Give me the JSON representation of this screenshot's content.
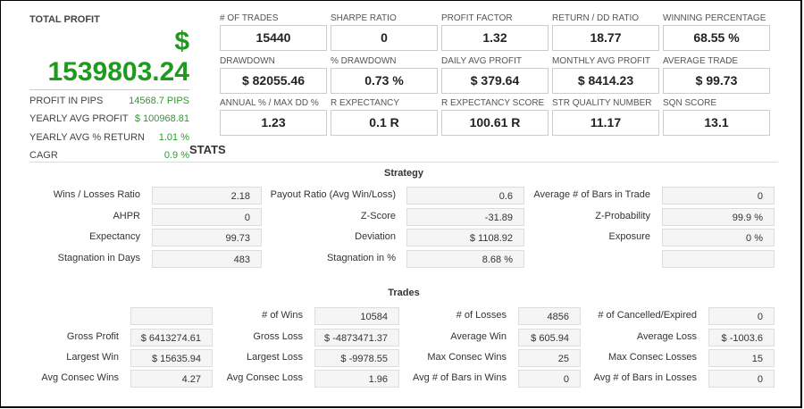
{
  "summary": {
    "title": "TOTAL PROFIT",
    "currency": "$",
    "total_profit": "1539803.24",
    "rows": [
      {
        "label": "PROFIT IN PIPS",
        "value": "14568.7 PIPS"
      },
      {
        "label": "YEARLY AVG PROFIT",
        "value": "$ 100968.81"
      },
      {
        "label": "YEARLY AVG % RETURN",
        "value": "1.01 %"
      },
      {
        "label": "CAGR",
        "value": "0.9 %"
      }
    ]
  },
  "cards": [
    [
      {
        "label": "# OF TRADES",
        "value": "15440"
      },
      {
        "label": "SHARPE RATIO",
        "value": "0"
      },
      {
        "label": "PROFIT FACTOR",
        "value": "1.32"
      },
      {
        "label": "RETURN / DD RATIO",
        "value": "18.77"
      },
      {
        "label": "WINNING PERCENTAGE",
        "value": "68.55 %"
      }
    ],
    [
      {
        "label": "DRAWDOWN",
        "value": "$ 82055.46"
      },
      {
        "label": "% DRAWDOWN",
        "value": "0.73 %"
      },
      {
        "label": "DAILY AVG PROFIT",
        "value": "$ 379.64"
      },
      {
        "label": "MONTHLY AVG PROFIT",
        "value": "$ 8414.23"
      },
      {
        "label": "AVERAGE TRADE",
        "value": "$ 99.73"
      }
    ],
    [
      {
        "label": "ANNUAL % / MAX DD %",
        "value": "1.23"
      },
      {
        "label": "R EXPECTANCY",
        "value": "0.1 R"
      },
      {
        "label": "R EXPECTANCY SCORE",
        "value": "100.61 R"
      },
      {
        "label": "STR QUALITY NUMBER",
        "value": "11.17"
      },
      {
        "label": "SQN SCORE",
        "value": "13.1"
      }
    ]
  ],
  "stats_title": "STATS",
  "strategy": {
    "title": "Strategy",
    "rows": [
      [
        {
          "label": "Wins / Losses Ratio",
          "value": "2.18"
        },
        {
          "label": "Payout Ratio (Avg Win/Loss)",
          "value": "0.6"
        },
        {
          "label": "Average # of Bars in Trade",
          "value": "0"
        }
      ],
      [
        {
          "label": "AHPR",
          "value": "0"
        },
        {
          "label": "Z-Score",
          "value": "-31.89"
        },
        {
          "label": "Z-Probability",
          "value": "99.9 %"
        }
      ],
      [
        {
          "label": "Expectancy",
          "value": "99.73"
        },
        {
          "label": "Deviation",
          "value": "$ 1108.92"
        },
        {
          "label": "Exposure",
          "value": "0 %"
        }
      ],
      [
        {
          "label": "Stagnation in Days",
          "value": "483"
        },
        {
          "label": "Stagnation in %",
          "value": "8.68 %"
        },
        {
          "label": "",
          "value": ""
        }
      ]
    ]
  },
  "trades": {
    "title": "Trades",
    "rows": [
      [
        {
          "label": "",
          "value": ""
        },
        {
          "label": "# of Wins",
          "value": "10584"
        },
        {
          "label": "# of Losses",
          "value": "4856"
        },
        {
          "label": "# of Cancelled/Expired",
          "value": "0"
        }
      ],
      [
        {
          "label": "Gross Profit",
          "value": "$ 6413274.61"
        },
        {
          "label": "Gross Loss",
          "value": "$ -4873471.37"
        },
        {
          "label": "Average Win",
          "value": "$ 605.94"
        },
        {
          "label": "Average Loss",
          "value": "$ -1003.6"
        }
      ],
      [
        {
          "label": "Largest Win",
          "value": "$ 15635.94"
        },
        {
          "label": "Largest Loss",
          "value": "$ -9978.55"
        },
        {
          "label": "Max Consec Wins",
          "value": "25"
        },
        {
          "label": "Max Consec Losses",
          "value": "15"
        }
      ],
      [
        {
          "label": "Avg Consec Wins",
          "value": "4.27"
        },
        {
          "label": "Avg Consec Loss",
          "value": "1.96"
        },
        {
          "label": "Avg # of Bars in Wins",
          "value": "0"
        },
        {
          "label": "Avg # of Bars in Losses",
          "value": "0"
        }
      ]
    ]
  },
  "colors": {
    "profit_green": "#1e9a1e",
    "value_green": "#2a9d2a"
  }
}
